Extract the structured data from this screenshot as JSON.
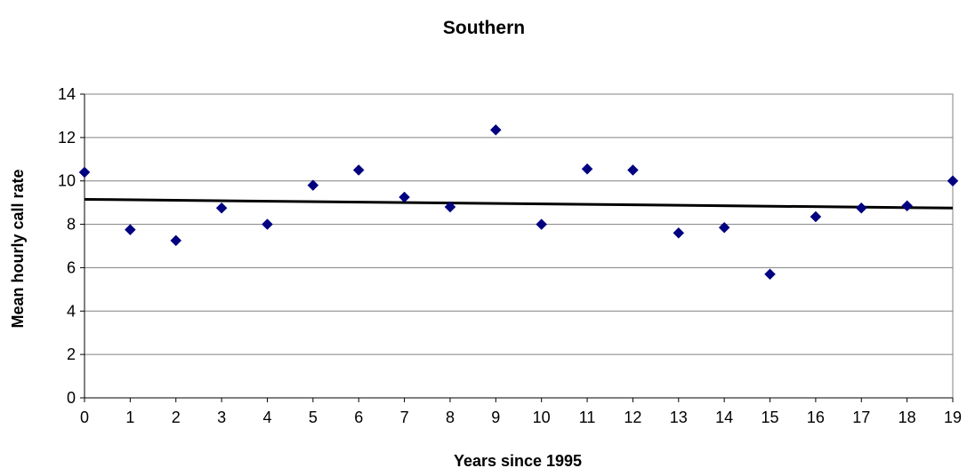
{
  "chart_data": {
    "type": "scatter",
    "title": "Southern",
    "xlabel": "Years since 1995",
    "ylabel": "Mean hourly call rate",
    "xlim": [
      0,
      19
    ],
    "ylim": [
      0,
      14
    ],
    "xticks": [
      0,
      1,
      2,
      3,
      4,
      5,
      6,
      7,
      8,
      9,
      10,
      11,
      12,
      13,
      14,
      15,
      16,
      17,
      18,
      19
    ],
    "yticks": [
      0,
      2,
      4,
      6,
      8,
      10,
      12,
      14
    ],
    "grid": "horizontal",
    "legend": "none",
    "series": [
      {
        "marker": "diamond",
        "color": "#000080",
        "x": [
          0,
          1,
          2,
          3,
          4,
          5,
          6,
          7,
          8,
          9,
          10,
          11,
          12,
          13,
          14,
          15,
          16,
          17,
          18,
          19
        ],
        "y": [
          10.4,
          7.75,
          7.25,
          8.75,
          8.0,
          9.8,
          10.5,
          9.25,
          8.8,
          12.35,
          8.0,
          10.55,
          10.5,
          7.6,
          7.85,
          5.7,
          8.35,
          8.75,
          8.85,
          10.0
        ]
      }
    ],
    "trendline": {
      "type": "linear",
      "color": "#000000",
      "x": [
        0,
        19
      ],
      "y": [
        9.15,
        8.75
      ]
    }
  }
}
